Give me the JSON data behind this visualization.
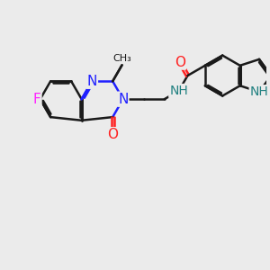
{
  "bg_color": "#ebebeb",
  "bond_color": "#1a1a1a",
  "bond_width": 1.8,
  "dbo": 0.055,
  "atom_colors": {
    "N": "#2020ff",
    "O": "#ff2020",
    "F": "#ff20ff",
    "NH": "#208080",
    "C": "#1a1a1a"
  },
  "font_size": 10
}
